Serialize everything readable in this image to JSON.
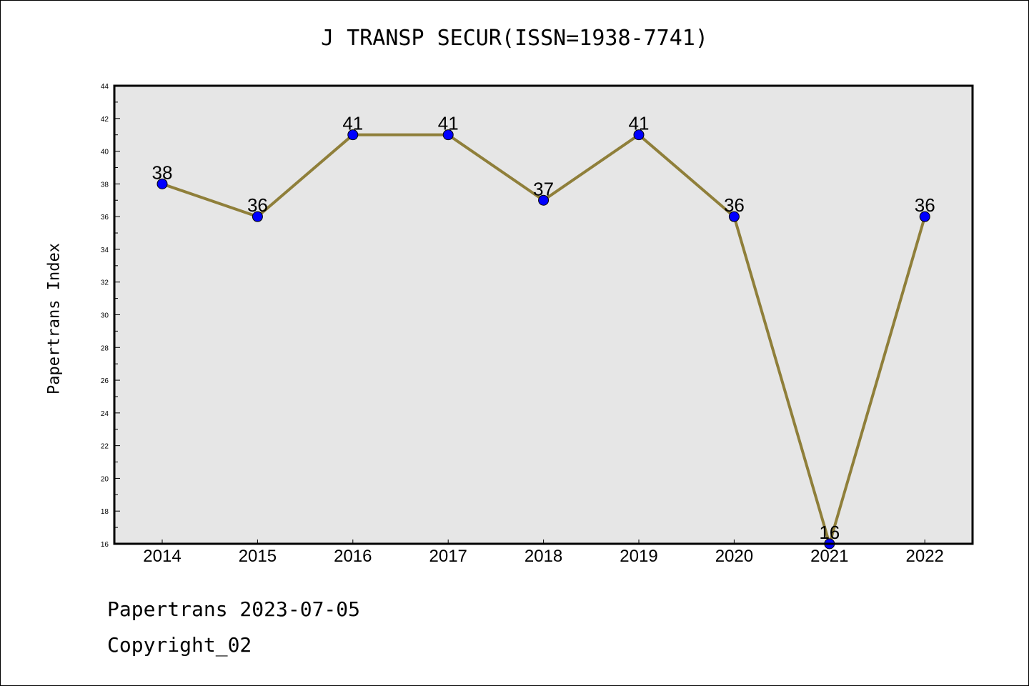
{
  "page": {
    "footer_date": "Papertrans 2023-07-05",
    "footer_copyright": "Copyright_02"
  },
  "colors": {
    "line": "#8f7f3a",
    "marker": "#0000ff",
    "plot_background": "#e6e6e6"
  },
  "chart_data": {
    "type": "line",
    "title": "J TRANSP SECUR(ISSN=1938-7741)",
    "xlabel": "",
    "ylabel": "Papertrans Index",
    "categories": [
      "2014",
      "2015",
      "2016",
      "2017",
      "2018",
      "2019",
      "2020",
      "2021",
      "2022"
    ],
    "series": [
      {
        "values": [
          38,
          36,
          41,
          41,
          37,
          41,
          36,
          16,
          36
        ]
      }
    ],
    "ylim": [
      16,
      44
    ],
    "yticks": [
      16,
      18,
      20,
      22,
      24,
      26,
      28,
      30,
      32,
      34,
      36,
      38,
      40,
      42,
      44
    ],
    "grid": false,
    "legend": "none"
  }
}
